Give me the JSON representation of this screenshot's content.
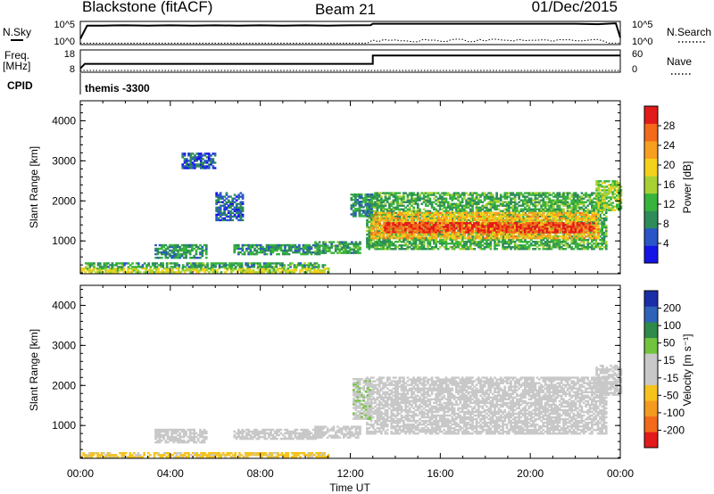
{
  "header": {
    "title": "Blackstone (fitACF)",
    "beam": "Beam 21",
    "date": "01/Dec/2015"
  },
  "summary_panel": {
    "nsky_label": "N.Sky",
    "nsky_ticks": [
      "10^5",
      "10^0"
    ],
    "nsearch_label": "N.Search",
    "nsearch_ticks": [
      "10^5",
      "10^0"
    ],
    "freq_label_line1": "Freq.",
    "freq_label_line2": "[MHz]",
    "freq_ticks": [
      "18",
      "8"
    ],
    "nave_label": "Nave",
    "nave_ticks": [
      "60",
      "0"
    ],
    "cpid_label": "CPID",
    "cpid_value": "themis -3300"
  },
  "colors": {
    "power_scale": [
      "#1414e6",
      "#2a55c8",
      "#2e8c5a",
      "#38b43c",
      "#a8d234",
      "#f4d21c",
      "#f7a020",
      "#f26a1a",
      "#e31a1a"
    ],
    "velocity_scale": [
      "#e31a1a",
      "#f26a1a",
      "#f59a20",
      "#f5c31c",
      "#c8c8c8",
      "#c8c8c8",
      "#72c43e",
      "#2e8a4a",
      "#2f63b8",
      "#1a2ea8"
    ]
  },
  "chart_data": [
    {
      "type": "heatmap",
      "name": "power",
      "xlabel": "Time UT",
      "ylabel": "Slant Range [km]",
      "xlim_hours": [
        0,
        24
      ],
      "ylim_km": [
        180,
        4500
      ],
      "x_ticks": [
        "00:00",
        "04:00",
        "08:00",
        "12:00",
        "16:00",
        "20:00",
        "00:00"
      ],
      "y_ticks": [
        1000,
        2000,
        3000,
        4000
      ],
      "colorbar_label": "Power [dB]",
      "colorbar_ticks": [
        "28",
        "24",
        "20",
        "16",
        "12",
        "8",
        "4"
      ],
      "colorbar_range": [
        0,
        30
      ],
      "regions": [
        {
          "t0": 0.0,
          "t1": 11.0,
          "r0": 200,
          "r1": 330,
          "level": 16
        },
        {
          "t0": 0.2,
          "t1": 10.9,
          "r0": 330,
          "r1": 460,
          "level": 10
        },
        {
          "t0": 3.3,
          "t1": 5.6,
          "r0": 560,
          "r1": 880,
          "level": 9
        },
        {
          "t0": 6.8,
          "t1": 10.6,
          "r0": 650,
          "r1": 900,
          "level": 9
        },
        {
          "t0": 10.4,
          "t1": 12.4,
          "r0": 680,
          "r1": 960,
          "level": 10
        },
        {
          "t0": 12.7,
          "t1": 23.4,
          "r0": 780,
          "r1": 2200,
          "level": 11
        },
        {
          "t0": 12.9,
          "t1": 23.0,
          "r0": 1050,
          "r1": 1700,
          "level": 20
        },
        {
          "t0": 13.5,
          "t1": 22.8,
          "r0": 1200,
          "r1": 1450,
          "level": 27
        },
        {
          "t0": 22.9,
          "t1": 24.0,
          "r0": 1750,
          "r1": 2500,
          "level": 14
        },
        {
          "t0": 12.0,
          "t1": 12.9,
          "r0": 1600,
          "r1": 2150,
          "level": 9
        },
        {
          "t0": 6.0,
          "t1": 7.2,
          "r0": 1500,
          "r1": 2200,
          "level": 6
        },
        {
          "t0": 4.5,
          "t1": 6.0,
          "r0": 2800,
          "r1": 3200,
          "level": 5
        }
      ]
    },
    {
      "type": "heatmap",
      "name": "velocity",
      "xlabel": "Time UT",
      "ylabel": "Slant Range [km]",
      "xlim_hours": [
        0,
        24
      ],
      "ylim_km": [
        180,
        4500
      ],
      "x_ticks": [
        "00:00",
        "04:00",
        "08:00",
        "12:00",
        "16:00",
        "20:00",
        "00:00"
      ],
      "y_ticks": [
        1000,
        2000,
        3000,
        4000
      ],
      "colorbar_label": "Velocity [m s⁻¹]",
      "colorbar_ticks": [
        "200",
        "100",
        "50",
        "15",
        "-15",
        "-50",
        "-100",
        "-200"
      ],
      "colorbar_range": [
        -250,
        250
      ],
      "regions": [
        {
          "t0": 0.0,
          "t1": 11.0,
          "r0": 200,
          "r1": 330,
          "level": -60
        },
        {
          "t0": 3.3,
          "t1": 5.6,
          "r0": 560,
          "r1": 880,
          "level": 0
        },
        {
          "t0": 6.8,
          "t1": 10.6,
          "r0": 650,
          "r1": 900,
          "level": -25
        },
        {
          "t0": 10.4,
          "t1": 12.4,
          "r0": 680,
          "r1": 960,
          "level": 0
        },
        {
          "t0": 12.7,
          "t1": 23.4,
          "r0": 780,
          "r1": 2200,
          "level": 0
        },
        {
          "t0": 12.1,
          "t1": 12.9,
          "r0": 1150,
          "r1": 2150,
          "level": 40
        },
        {
          "t0": 22.9,
          "t1": 24.0,
          "r0": 1750,
          "r1": 2500,
          "level": -30
        }
      ]
    },
    {
      "type": "line",
      "name": "n_sky",
      "x_hours": [
        0,
        0.3,
        1,
        2,
        3,
        4,
        5,
        6,
        7,
        8,
        9,
        10,
        11,
        12,
        12.9,
        13,
        14,
        15,
        16,
        17,
        18,
        19,
        20,
        21,
        22,
        23,
        23.8,
        24
      ],
      "values_norm": [
        0.25,
        0.82,
        0.82,
        0.83,
        0.82,
        0.83,
        0.82,
        0.83,
        0.82,
        0.83,
        0.82,
        0.83,
        0.82,
        0.83,
        0.84,
        0.9,
        0.9,
        0.9,
        0.9,
        0.9,
        0.9,
        0.9,
        0.9,
        0.9,
        0.9,
        0.88,
        0.92,
        0.3
      ]
    },
    {
      "type": "line",
      "name": "freq_mhz",
      "x_hours": [
        0,
        0.2,
        13.0,
        13.0,
        24
      ],
      "values": [
        8,
        10.5,
        10.5,
        15,
        15
      ]
    }
  ]
}
